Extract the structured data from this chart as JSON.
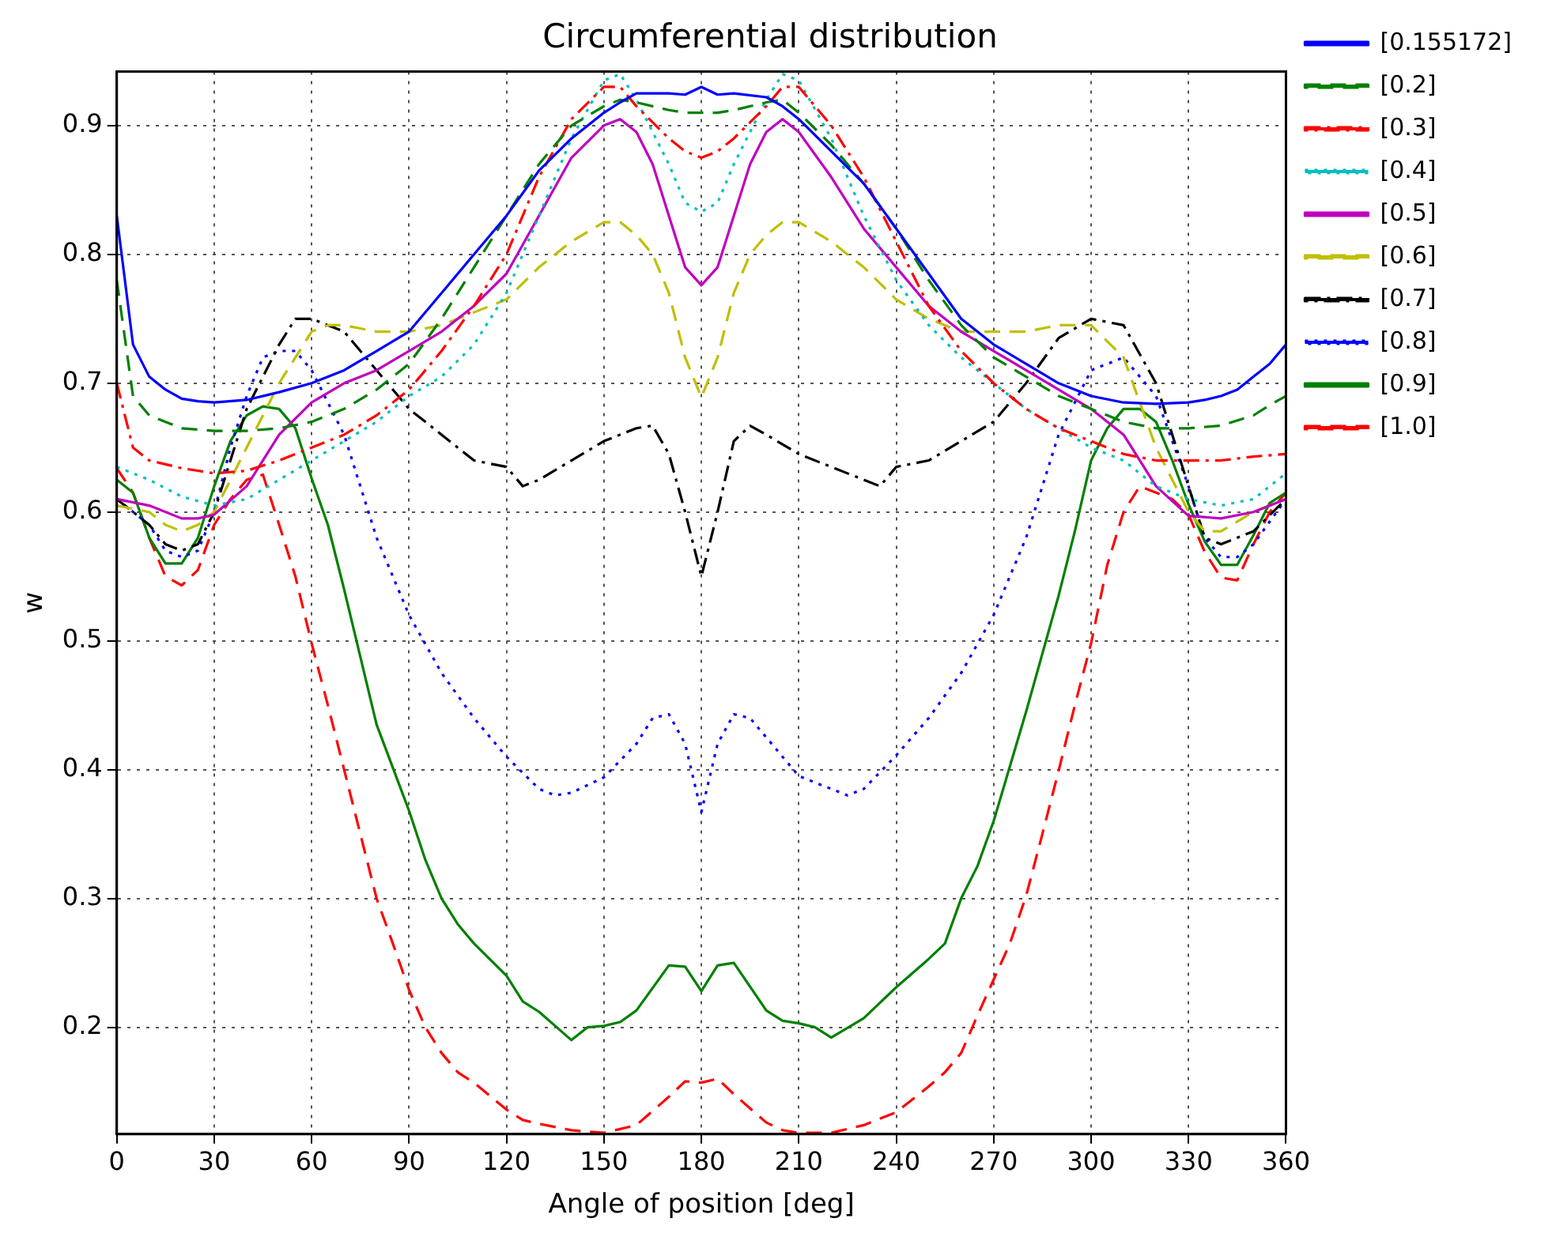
{
  "chart_data": {
    "type": "line",
    "title": "Circumferential distribution",
    "xlabel": "Angle of position [deg]",
    "ylabel": "w",
    "xlim": [
      0,
      360
    ],
    "xticks": [
      0,
      30,
      60,
      90,
      120,
      150,
      180,
      210,
      240,
      270,
      300,
      330,
      360
    ],
    "ylim": [
      0.117,
      0.942
    ],
    "yticks": [
      0.2,
      0.3,
      0.4,
      0.5,
      0.6,
      0.7,
      0.8,
      0.9
    ],
    "grid": true,
    "legend": "right",
    "marker": "none",
    "series": [
      {
        "name": "[0.155172]",
        "color": "#0000ff",
        "line_style": "solid",
        "x": [
          0,
          5,
          10,
          15,
          20,
          25,
          30,
          40,
          50,
          60,
          70,
          80,
          90,
          100,
          110,
          120,
          130,
          140,
          150,
          155,
          160,
          170,
          175,
          180,
          185,
          190,
          200,
          205,
          210,
          220,
          230,
          240,
          250,
          260,
          270,
          280,
          290,
          300,
          310,
          320,
          330,
          335,
          340,
          345,
          350,
          355,
          360
        ],
        "values": [
          0.83,
          0.73,
          0.705,
          0.695,
          0.688,
          0.686,
          0.685,
          0.687,
          0.693,
          0.7,
          0.71,
          0.725,
          0.74,
          0.77,
          0.8,
          0.83,
          0.865,
          0.89,
          0.91,
          0.918,
          0.925,
          0.925,
          0.924,
          0.93,
          0.924,
          0.925,
          0.922,
          0.915,
          0.905,
          0.88,
          0.855,
          0.82,
          0.785,
          0.75,
          0.73,
          0.715,
          0.7,
          0.69,
          0.685,
          0.684,
          0.685,
          0.687,
          0.69,
          0.695,
          0.705,
          0.715,
          0.73
        ]
      },
      {
        "name": "[0.2]",
        "color": "#008000",
        "line_style": "dashed",
        "x": [
          0,
          5,
          10,
          15,
          20,
          30,
          40,
          50,
          60,
          70,
          80,
          90,
          100,
          110,
          120,
          130,
          140,
          150,
          155,
          160,
          170,
          175,
          180,
          185,
          190,
          200,
          205,
          210,
          220,
          230,
          240,
          250,
          260,
          270,
          280,
          290,
          300,
          310,
          320,
          330,
          340,
          350,
          355,
          360
        ],
        "values": [
          0.78,
          0.69,
          0.675,
          0.67,
          0.665,
          0.663,
          0.663,
          0.665,
          0.67,
          0.68,
          0.695,
          0.715,
          0.75,
          0.79,
          0.83,
          0.87,
          0.9,
          0.915,
          0.92,
          0.918,
          0.912,
          0.91,
          0.91,
          0.91,
          0.912,
          0.918,
          0.92,
          0.91,
          0.885,
          0.855,
          0.82,
          0.78,
          0.745,
          0.72,
          0.705,
          0.69,
          0.68,
          0.67,
          0.665,
          0.665,
          0.667,
          0.675,
          0.683,
          0.69
        ]
      },
      {
        "name": "[0.3]",
        "color": "#ff0000",
        "line_style": "dashdot",
        "x": [
          0,
          5,
          10,
          15,
          20,
          30,
          40,
          50,
          60,
          70,
          80,
          90,
          100,
          110,
          120,
          130,
          140,
          150,
          155,
          160,
          170,
          175,
          180,
          185,
          190,
          200,
          205,
          210,
          220,
          230,
          240,
          250,
          260,
          270,
          280,
          290,
          300,
          310,
          320,
          330,
          340,
          350,
          360
        ],
        "values": [
          0.7,
          0.65,
          0.64,
          0.637,
          0.634,
          0.63,
          0.632,
          0.64,
          0.65,
          0.66,
          0.675,
          0.695,
          0.725,
          0.76,
          0.8,
          0.86,
          0.905,
          0.93,
          0.93,
          0.915,
          0.89,
          0.88,
          0.875,
          0.88,
          0.89,
          0.915,
          0.93,
          0.93,
          0.9,
          0.86,
          0.81,
          0.76,
          0.725,
          0.7,
          0.68,
          0.665,
          0.655,
          0.645,
          0.64,
          0.64,
          0.64,
          0.643,
          0.645
        ]
      },
      {
        "name": "[0.4]",
        "color": "#00bfbf",
        "line_style": "dotted",
        "x": [
          0,
          10,
          20,
          30,
          40,
          50,
          60,
          70,
          80,
          90,
          100,
          110,
          120,
          130,
          140,
          150,
          155,
          160,
          170,
          175,
          180,
          185,
          190,
          200,
          205,
          210,
          220,
          230,
          240,
          250,
          260,
          270,
          280,
          290,
          300,
          310,
          320,
          330,
          340,
          350,
          360
        ],
        "values": [
          0.635,
          0.625,
          0.612,
          0.605,
          0.61,
          0.625,
          0.64,
          0.655,
          0.67,
          0.69,
          0.705,
          0.73,
          0.77,
          0.83,
          0.89,
          0.935,
          0.94,
          0.92,
          0.87,
          0.84,
          0.833,
          0.84,
          0.87,
          0.92,
          0.94,
          0.935,
          0.89,
          0.83,
          0.78,
          0.745,
          0.72,
          0.7,
          0.68,
          0.665,
          0.65,
          0.64,
          0.62,
          0.61,
          0.605,
          0.61,
          0.63
        ]
      },
      {
        "name": "[0.5]",
        "color": "#bf00bf",
        "line_style": "solid",
        "x": [
          0,
          10,
          20,
          25,
          30,
          40,
          50,
          60,
          70,
          80,
          90,
          100,
          110,
          120,
          130,
          140,
          150,
          155,
          160,
          165,
          170,
          175,
          180,
          185,
          190,
          195,
          200,
          205,
          210,
          220,
          230,
          240,
          250,
          260,
          270,
          280,
          290,
          300,
          310,
          320,
          330,
          340,
          350,
          360
        ],
        "values": [
          0.61,
          0.605,
          0.595,
          0.595,
          0.598,
          0.62,
          0.66,
          0.685,
          0.7,
          0.71,
          0.725,
          0.74,
          0.76,
          0.785,
          0.83,
          0.875,
          0.9,
          0.905,
          0.895,
          0.87,
          0.83,
          0.79,
          0.776,
          0.79,
          0.83,
          0.87,
          0.895,
          0.905,
          0.895,
          0.86,
          0.82,
          0.79,
          0.76,
          0.74,
          0.725,
          0.71,
          0.695,
          0.68,
          0.66,
          0.62,
          0.597,
          0.595,
          0.6,
          0.61
        ]
      },
      {
        "name": "[0.6]",
        "color": "#bfbf00",
        "line_style": "dashed",
        "x": [
          0,
          10,
          15,
          20,
          25,
          30,
          35,
          40,
          50,
          60,
          65,
          70,
          80,
          90,
          100,
          110,
          120,
          130,
          140,
          150,
          155,
          160,
          165,
          170,
          175,
          180,
          185,
          190,
          195,
          200,
          205,
          210,
          220,
          230,
          240,
          250,
          260,
          270,
          280,
          290,
          300,
          310,
          320,
          330,
          335,
          340,
          350,
          360
        ],
        "values": [
          0.605,
          0.6,
          0.59,
          0.585,
          0.59,
          0.6,
          0.625,
          0.65,
          0.7,
          0.74,
          0.745,
          0.745,
          0.74,
          0.74,
          0.745,
          0.755,
          0.765,
          0.79,
          0.81,
          0.825,
          0.825,
          0.815,
          0.8,
          0.77,
          0.72,
          0.689,
          0.72,
          0.77,
          0.8,
          0.815,
          0.825,
          0.825,
          0.81,
          0.79,
          0.765,
          0.75,
          0.74,
          0.74,
          0.74,
          0.745,
          0.745,
          0.72,
          0.65,
          0.6,
          0.585,
          0.585,
          0.6,
          0.61
        ]
      },
      {
        "name": "[0.7]",
        "color": "#000000",
        "line_style": "dashdot",
        "x": [
          0,
          10,
          15,
          20,
          25,
          30,
          35,
          40,
          50,
          55,
          60,
          70,
          80,
          90,
          100,
          110,
          120,
          125,
          130,
          140,
          150,
          160,
          165,
          170,
          175,
          180,
          185,
          190,
          195,
          200,
          210,
          220,
          230,
          235,
          240,
          250,
          260,
          270,
          280,
          290,
          300,
          310,
          320,
          330,
          335,
          340,
          350,
          360
        ],
        "values": [
          0.61,
          0.59,
          0.575,
          0.57,
          0.575,
          0.6,
          0.64,
          0.68,
          0.73,
          0.75,
          0.75,
          0.74,
          0.71,
          0.68,
          0.66,
          0.64,
          0.635,
          0.62,
          0.625,
          0.64,
          0.655,
          0.665,
          0.667,
          0.645,
          0.6,
          0.55,
          0.6,
          0.655,
          0.667,
          0.66,
          0.645,
          0.635,
          0.625,
          0.62,
          0.635,
          0.64,
          0.655,
          0.67,
          0.7,
          0.735,
          0.75,
          0.745,
          0.7,
          0.62,
          0.58,
          0.575,
          0.585,
          0.61
        ]
      },
      {
        "name": "[0.8]",
        "color": "#0000ff",
        "line_style": "dotted",
        "x": [
          0,
          10,
          15,
          20,
          25,
          30,
          35,
          40,
          45,
          50,
          55,
          60,
          70,
          80,
          90,
          100,
          110,
          120,
          130,
          135,
          140,
          150,
          160,
          165,
          170,
          175,
          180,
          185,
          190,
          195,
          200,
          210,
          220,
          225,
          230,
          240,
          250,
          260,
          270,
          280,
          290,
          300,
          310,
          320,
          330,
          335,
          340,
          345,
          350,
          360
        ],
        "values": [
          0.61,
          0.59,
          0.57,
          0.565,
          0.57,
          0.6,
          0.65,
          0.69,
          0.72,
          0.725,
          0.725,
          0.71,
          0.66,
          0.58,
          0.52,
          0.475,
          0.44,
          0.41,
          0.385,
          0.38,
          0.382,
          0.394,
          0.42,
          0.44,
          0.443,
          0.42,
          0.367,
          0.42,
          0.443,
          0.44,
          0.425,
          0.395,
          0.385,
          0.38,
          0.385,
          0.411,
          0.44,
          0.475,
          0.52,
          0.58,
          0.66,
          0.71,
          0.72,
          0.69,
          0.62,
          0.58,
          0.565,
          0.565,
          0.575,
          0.61
        ]
      },
      {
        "name": "[0.9]",
        "color": "#008000",
        "line_style": "solid",
        "x": [
          0,
          5,
          10,
          15,
          20,
          25,
          30,
          35,
          40,
          45,
          50,
          55,
          60,
          65,
          70,
          80,
          90,
          95,
          100,
          105,
          110,
          120,
          125,
          130,
          140,
          145,
          150,
          155,
          160,
          170,
          175,
          180,
          185,
          190,
          200,
          205,
          210,
          215,
          220,
          230,
          240,
          250,
          255,
          260,
          265,
          270,
          280,
          290,
          295,
          300,
          305,
          310,
          315,
          320,
          325,
          330,
          335,
          340,
          345,
          350,
          355,
          360
        ],
        "values": [
          0.625,
          0.615,
          0.58,
          0.56,
          0.56,
          0.58,
          0.62,
          0.655,
          0.675,
          0.682,
          0.68,
          0.665,
          0.626,
          0.59,
          0.54,
          0.435,
          0.368,
          0.33,
          0.3,
          0.28,
          0.265,
          0.24,
          0.22,
          0.212,
          0.19,
          0.2,
          0.201,
          0.204,
          0.213,
          0.248,
          0.247,
          0.228,
          0.248,
          0.25,
          0.213,
          0.205,
          0.203,
          0.2,
          0.192,
          0.207,
          0.231,
          0.253,
          0.265,
          0.3,
          0.325,
          0.36,
          0.445,
          0.535,
          0.585,
          0.64,
          0.665,
          0.68,
          0.68,
          0.67,
          0.64,
          0.606,
          0.577,
          0.559,
          0.559,
          0.582,
          0.607,
          0.615
        ]
      },
      {
        "name": "[1.0]",
        "color": "#ff0000",
        "line_style": "dashed",
        "x": [
          0,
          5,
          10,
          15,
          20,
          25,
          30,
          35,
          40,
          45,
          50,
          55,
          60,
          65,
          70,
          75,
          80,
          85,
          90,
          95,
          100,
          105,
          110,
          120,
          125,
          130,
          140,
          150,
          160,
          165,
          170,
          175,
          180,
          185,
          190,
          200,
          205,
          210,
          220,
          230,
          240,
          250,
          255,
          260,
          265,
          270,
          275,
          280,
          285,
          290,
          295,
          300,
          305,
          310,
          315,
          320,
          325,
          330,
          335,
          340,
          345,
          350,
          355,
          360
        ],
        "values": [
          0.634,
          0.615,
          0.58,
          0.55,
          0.543,
          0.555,
          0.59,
          0.61,
          0.625,
          0.629,
          0.59,
          0.55,
          0.498,
          0.45,
          0.4,
          0.35,
          0.3,
          0.265,
          0.229,
          0.2,
          0.18,
          0.165,
          0.157,
          0.136,
          0.128,
          0.125,
          0.12,
          0.118,
          0.124,
          0.135,
          0.146,
          0.158,
          0.157,
          0.16,
          0.148,
          0.126,
          0.12,
          0.118,
          0.118,
          0.124,
          0.134,
          0.154,
          0.165,
          0.18,
          0.209,
          0.237,
          0.265,
          0.302,
          0.35,
          0.399,
          0.45,
          0.498,
          0.559,
          0.6,
          0.62,
          0.615,
          0.61,
          0.598,
          0.569,
          0.549,
          0.547,
          0.575,
          0.6,
          0.615
        ]
      }
    ]
  }
}
